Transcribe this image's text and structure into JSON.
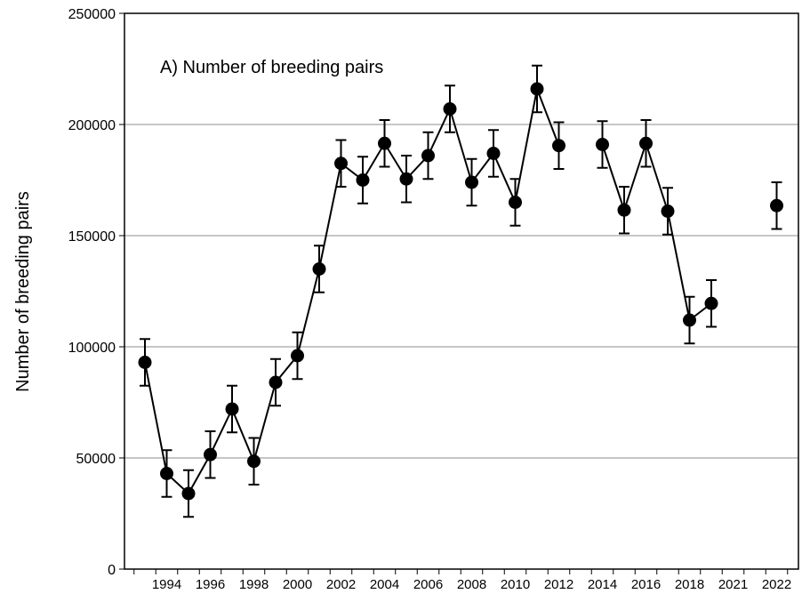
{
  "chart_data": {
    "type": "line",
    "annotation": "A) Number of breeding pairs",
    "y_label": "Number of breeding pairs",
    "categories": [
      null,
      "1994",
      null,
      "1996",
      null,
      "1998",
      null,
      "2000",
      null,
      "2002",
      null,
      "2004",
      null,
      "2006",
      null,
      "2008",
      null,
      "2010",
      null,
      "2012",
      null,
      "2014",
      null,
      "2016",
      null,
      "2018",
      null,
      "2021",
      null,
      "2022"
    ],
    "series": [
      {
        "name": "Number of breeding pairs",
        "color": "#000000",
        "values": [
          93000,
          43000,
          34000,
          51500,
          72000,
          48500,
          84000,
          96000,
          135000,
          182500,
          175000,
          191500,
          175500,
          186000,
          207000,
          174000,
          187000,
          165000,
          216000,
          190500,
          null,
          191000,
          161500,
          191500,
          161000,
          112000,
          119500,
          null,
          null,
          163500
        ],
        "errors": [
          10500,
          10500,
          10500,
          10500,
          10500,
          10500,
          10500,
          10500,
          10500,
          10500,
          10500,
          10500,
          10500,
          10500,
          10500,
          10500,
          10500,
          10500,
          10500,
          10500,
          null,
          10500,
          10500,
          10500,
          10500,
          10500,
          10500,
          null,
          null,
          10500
        ]
      }
    ],
    "ylim": [
      0,
      250000
    ],
    "yticks": [
      0,
      50000,
      100000,
      150000,
      200000,
      250000
    ],
    "grid": true
  }
}
